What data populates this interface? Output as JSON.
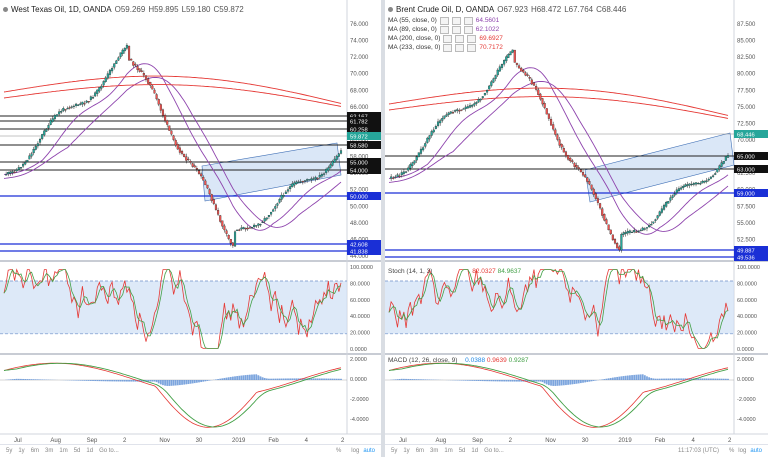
{
  "left": {
    "header": {
      "symbol": "West Texas Oil, 1D, OANDA",
      "o": "O59.269",
      "h": "H59.895",
      "l": "L59.180",
      "c": "C59.872"
    },
    "price_axis": [
      "76.000",
      "74.000",
      "72.000",
      "70.000",
      "68.000",
      "66.000",
      "64.000",
      "60.000",
      "58.000",
      "56.000",
      "52.000",
      "50.000",
      "48.000",
      "46.000",
      "44.000"
    ],
    "level_labels": [
      "62.167",
      "61.782",
      "60.258",
      "59.872",
      "58.580",
      "55.000",
      "54.000",
      "50.000",
      "42.608",
      "41.838"
    ],
    "stoch_axis": [
      "100.0000",
      "80.0000",
      "60.0000",
      "40.0000",
      "20.0000",
      "0.0000"
    ],
    "macd_axis": [
      "2.0000",
      "0.0000",
      "-2.0000",
      "-4.0000"
    ],
    "time_axis": [
      "Jul",
      "Aug",
      "Sep",
      "2",
      "Nov",
      "30",
      "2019",
      "Feb",
      "4",
      "2"
    ],
    "bottom": {
      "ranges": [
        "5y",
        "1y",
        "6m",
        "3m",
        "1m",
        "5d",
        "1d",
        "Go to..."
      ],
      "right": [
        "%",
        "log",
        "auto"
      ]
    }
  },
  "right": {
    "header": {
      "symbol": "Brent Crude Oil, D, OANDA",
      "o": "O67.923",
      "h": "H68.472",
      "l": "L67.764",
      "c": "C68.446"
    },
    "ma": [
      {
        "label": "MA (55, close, 0)",
        "value": "64.5601",
        "color": "#8e44ad"
      },
      {
        "label": "MA (89, close, 0)",
        "value": "62.1022",
        "color": "#8e44ad"
      },
      {
        "label": "MA (200, close, 0)",
        "value": "69.6927",
        "color": "#e53935"
      },
      {
        "label": "MA (233, close, 0)",
        "value": "70.7172",
        "color": "#e53935"
      }
    ],
    "price_axis": [
      "87.500",
      "85.000",
      "82.500",
      "80.000",
      "77.500",
      "75.000",
      "72.500",
      "70.000",
      "67.500",
      "62.500",
      "60.000",
      "57.500",
      "55.000",
      "52.500",
      "50.000"
    ],
    "level_labels": [
      "68.446",
      "65.000",
      "63.000",
      "59.000",
      "49.887",
      "49.536"
    ],
    "stoch_label": "Stoch (14, 1, 3)",
    "stoch_values": [
      "82.0327",
      "84.9637"
    ],
    "stoch_axis": [
      "100.0000",
      "80.0000",
      "60.0000",
      "40.0000",
      "20.0000",
      "0.0000"
    ],
    "macd_label": "MACD (12, 26, close, 9)",
    "macd_values": [
      "0.0388",
      "0.9639",
      "0.9287"
    ],
    "macd_axis": [
      "2.0000",
      "0.0000",
      "-2.0000",
      "-4.0000"
    ],
    "time_axis": [
      "Jul",
      "Aug",
      "Sep",
      "2",
      "Nov",
      "30",
      "2019",
      "Feb",
      "4",
      "2"
    ],
    "bottom": {
      "ranges": [
        "5y",
        "1y",
        "6m",
        "3m",
        "1m",
        "5d",
        "1d",
        "Go to..."
      ],
      "time": "11:17:03 (UTC)",
      "right": [
        "%",
        "log",
        "auto"
      ]
    }
  },
  "colors": {
    "up": "#26a69a",
    "down": "#ef5350",
    "ma_purple": "#8e44ad",
    "ma_red": "#e53935",
    "channel": "#bcd4f0",
    "stoch_k": "#e53935",
    "stoch_d": "#43a047",
    "macd_hist": "#5b8fd6"
  }
}
